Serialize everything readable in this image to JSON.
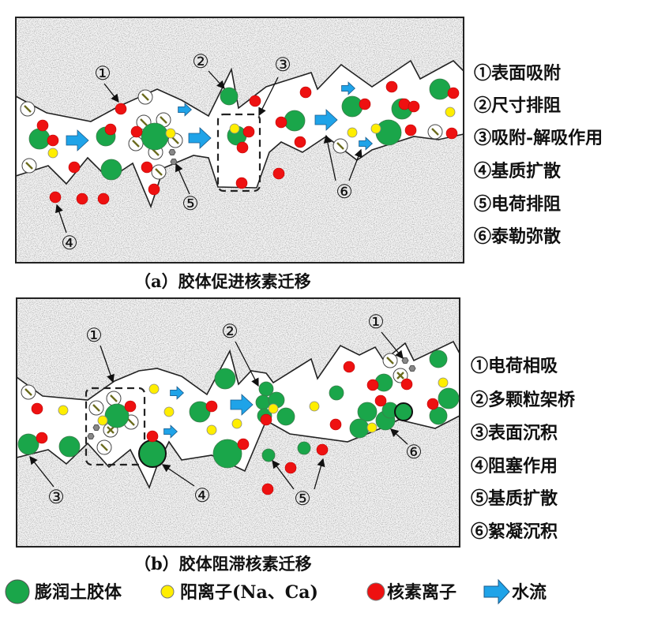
{
  "colors": {
    "colloid": "#1aa64a",
    "cation": "#ffee00",
    "nuclide": "#ee1111",
    "water_flow": "#1fa3e8",
    "rock_matrix": "#d8d8d8"
  },
  "panel_a": {
    "caption": "（a）胶体促进核素迁移",
    "legend": [
      "①表面吸附",
      "②尺寸排阻",
      "③吸附-解吸作用",
      "④基质扩散",
      "⑤电荷排阻",
      "⑥泰勒弥散"
    ],
    "callouts": [
      "①",
      "②",
      "③",
      "④",
      "⑤",
      "⑥"
    ]
  },
  "panel_b": {
    "caption": "（b）胶体阻滞核素迁移",
    "legend": [
      "①电荷相吸",
      "②多颗粒架桥",
      "③表面沉积",
      "④阻塞作用",
      "⑤基质扩散",
      "⑥絮凝沉积"
    ],
    "callouts": [
      "①",
      "②",
      "①",
      "③",
      "④",
      "⑤",
      "⑥"
    ]
  },
  "key": {
    "colloid": "膨润土胶体",
    "cation": "阳离子(Na、Ca)",
    "nuclide": "核素离子",
    "water_flow": "水流"
  }
}
